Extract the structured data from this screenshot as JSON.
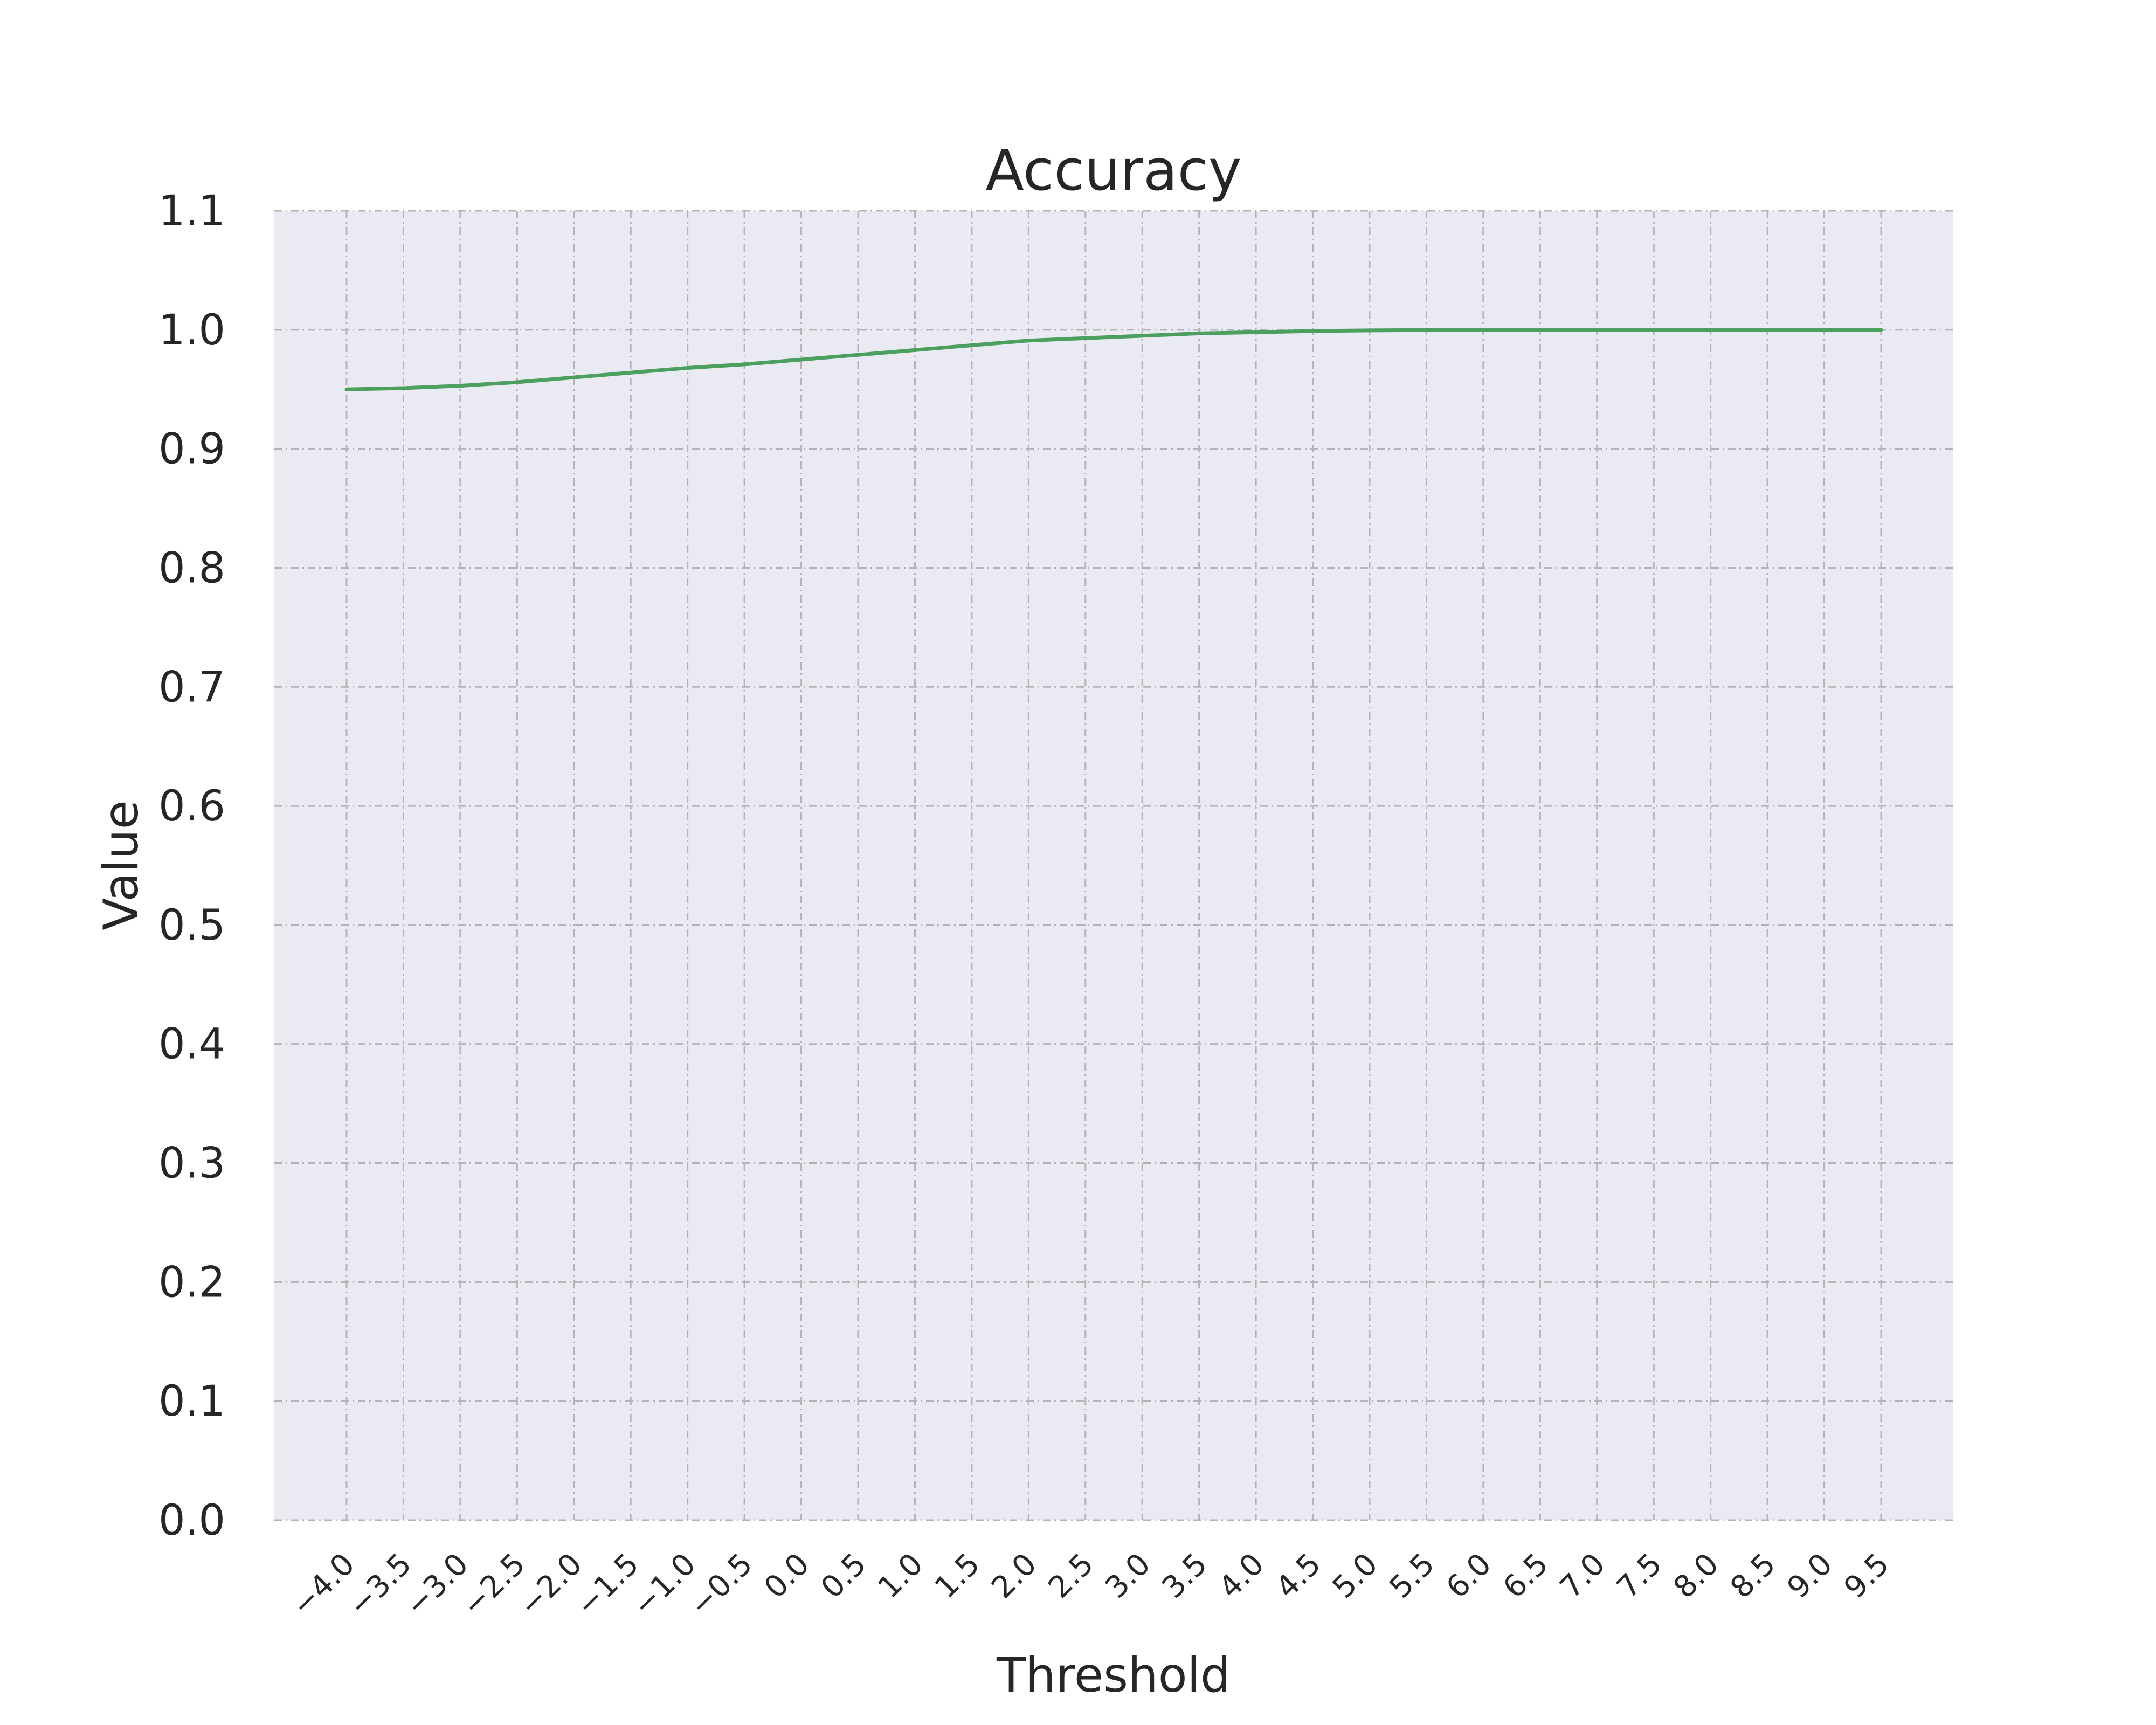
{
  "chart_data": {
    "type": "line",
    "title": "Accuracy",
    "xlabel": "Threshold",
    "ylabel": "Value",
    "xlim": [
      -4.0,
      9.5
    ],
    "ylim": [
      0.0,
      1.1
    ],
    "xticks": [
      "−4.0",
      "−3.5",
      "−3.0",
      "−2.5",
      "−2.0",
      "−1.5",
      "−1.0",
      "−0.5",
      "0.0",
      "0.5",
      "1.0",
      "1.5",
      "2.0",
      "2.5",
      "3.0",
      "3.5",
      "4.0",
      "4.5",
      "5.0",
      "5.5",
      "6.0",
      "6.5",
      "7.0",
      "7.5",
      "8.0",
      "8.5",
      "9.0",
      "9.5"
    ],
    "xtick_values": [
      -4.0,
      -3.5,
      -3.0,
      -2.5,
      -2.0,
      -1.5,
      -1.0,
      -0.5,
      0.0,
      0.5,
      1.0,
      1.5,
      2.0,
      2.5,
      3.0,
      3.5,
      4.0,
      4.5,
      5.0,
      5.5,
      6.0,
      6.5,
      7.0,
      7.5,
      8.0,
      8.5,
      9.0,
      9.5
    ],
    "yticks": [
      "0.0",
      "0.1",
      "0.2",
      "0.3",
      "0.4",
      "0.5",
      "0.6",
      "0.7",
      "0.8",
      "0.9",
      "1.0",
      "1.1"
    ],
    "ytick_values": [
      0.0,
      0.1,
      0.2,
      0.3,
      0.4,
      0.5,
      0.6,
      0.7,
      0.8,
      0.9,
      1.0,
      1.1
    ],
    "grid": true,
    "background": "#eaeaf2",
    "series": [
      {
        "color": "#4c9f5f",
        "x": [
          -4.0,
          -3.5,
          -3.0,
          -2.5,
          -2.0,
          -1.5,
          -1.0,
          -0.5,
          0.0,
          0.5,
          1.0,
          1.5,
          2.0,
          2.5,
          3.0,
          3.5,
          4.0,
          4.5,
          5.0,
          5.5,
          6.0,
          6.5,
          7.0,
          7.5,
          8.0,
          8.5,
          9.0,
          9.5
        ],
        "y": [
          0.95,
          0.951,
          0.953,
          0.956,
          0.96,
          0.964,
          0.968,
          0.971,
          0.975,
          0.979,
          0.983,
          0.987,
          0.991,
          0.993,
          0.995,
          0.997,
          0.998,
          0.999,
          0.9995,
          0.9998,
          1.0,
          1.0,
          1.0,
          1.0,
          1.0,
          1.0,
          1.0,
          1.0
        ]
      }
    ]
  }
}
